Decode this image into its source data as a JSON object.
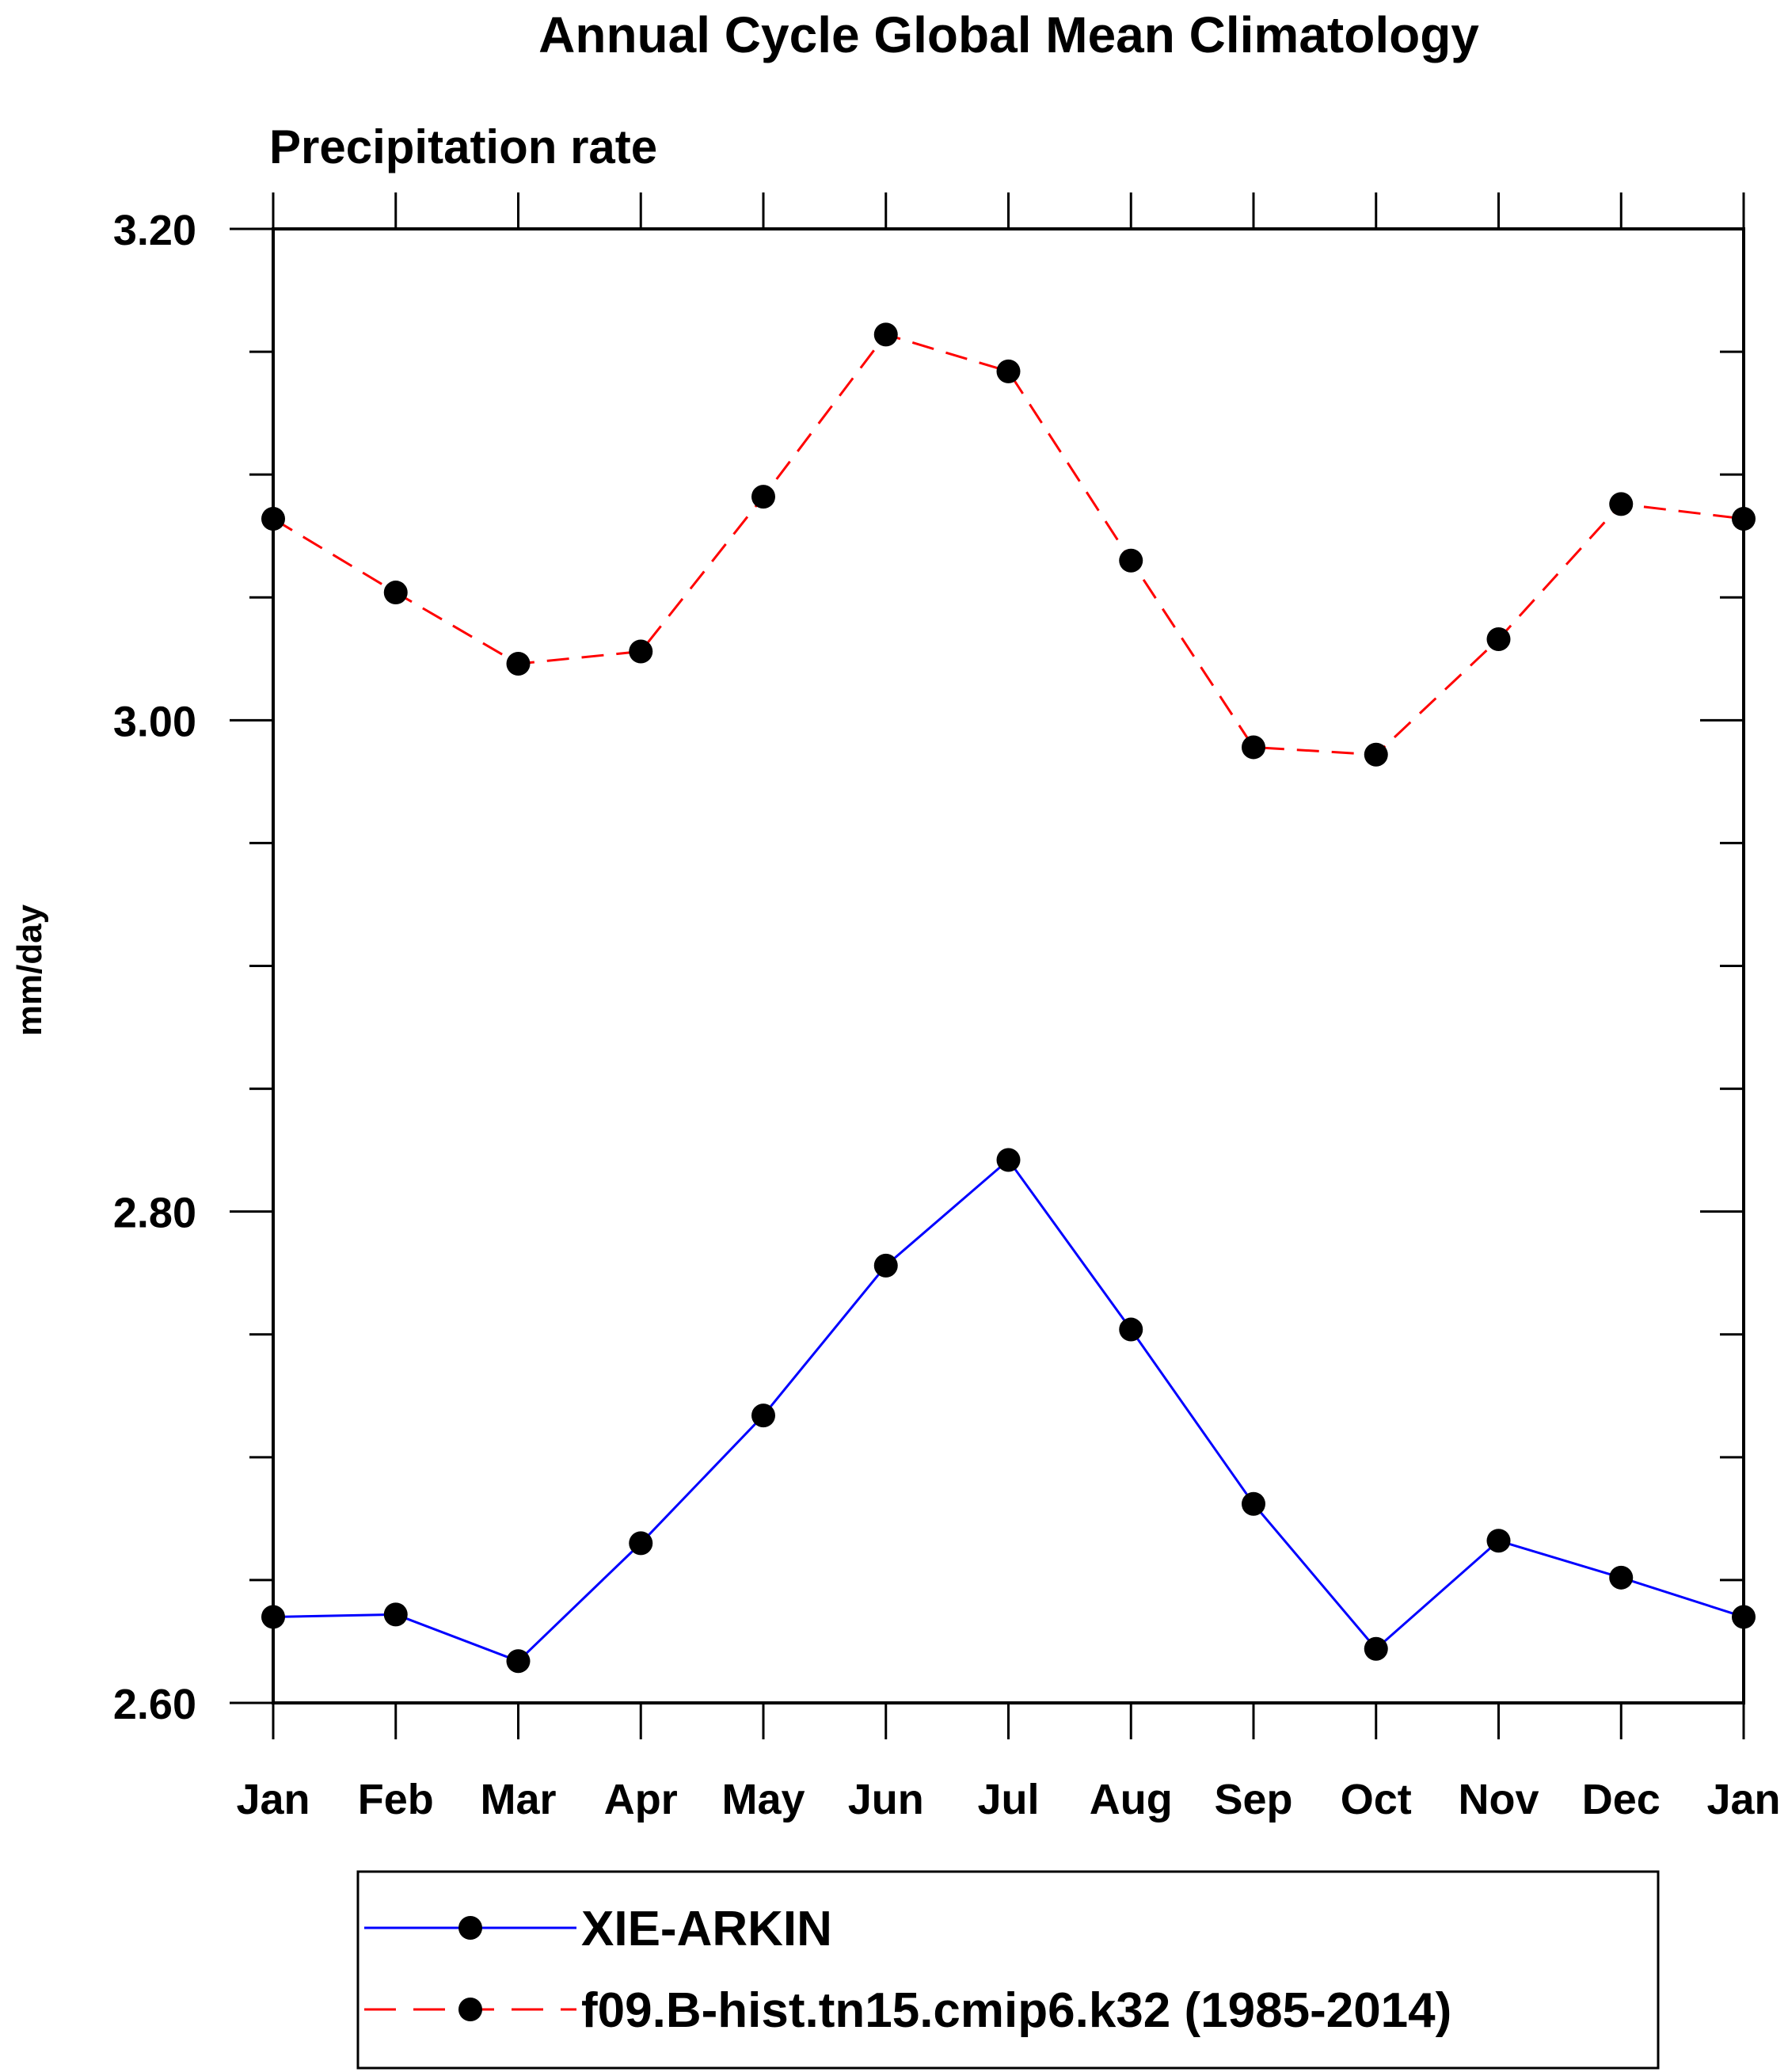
{
  "chart_data": {
    "type": "line",
    "title": "Annual Cycle Global Mean Climatology",
    "subtitle": "Precipitation rate",
    "xlabel": "",
    "ylabel": "mm/day",
    "categories": [
      "Jan",
      "Feb",
      "Mar",
      "Apr",
      "May",
      "Jun",
      "Jul",
      "Aug",
      "Sep",
      "Oct",
      "Nov",
      "Dec",
      "Jan"
    ],
    "ylim": [
      2.6,
      3.2
    ],
    "yticks": [
      2.6,
      2.8,
      3.0,
      3.2
    ],
    "ytick_labels": [
      "2.60",
      "2.80",
      "3.00",
      "3.20"
    ],
    "y_minor_step": 0.05,
    "grid": false,
    "legend_position": "bottom",
    "series": [
      {
        "name": "XIE-ARKIN",
        "color": "#0000ff",
        "dash": "solid",
        "marker": "filled-circle",
        "values": [
          2.635,
          2.636,
          2.617,
          2.665,
          2.717,
          2.778,
          2.821,
          2.752,
          2.681,
          2.622,
          2.666,
          2.651,
          2.635
        ]
      },
      {
        "name": "f09.B-hist.tn15.cmip6.k32 (1985-2014)",
        "color": "#ff0000",
        "dash": "dashed",
        "marker": "filled-circle",
        "values": [
          3.082,
          3.052,
          3.023,
          3.028,
          3.091,
          3.157,
          3.142,
          3.065,
          2.989,
          2.986,
          3.033,
          3.088,
          3.082
        ]
      }
    ]
  }
}
